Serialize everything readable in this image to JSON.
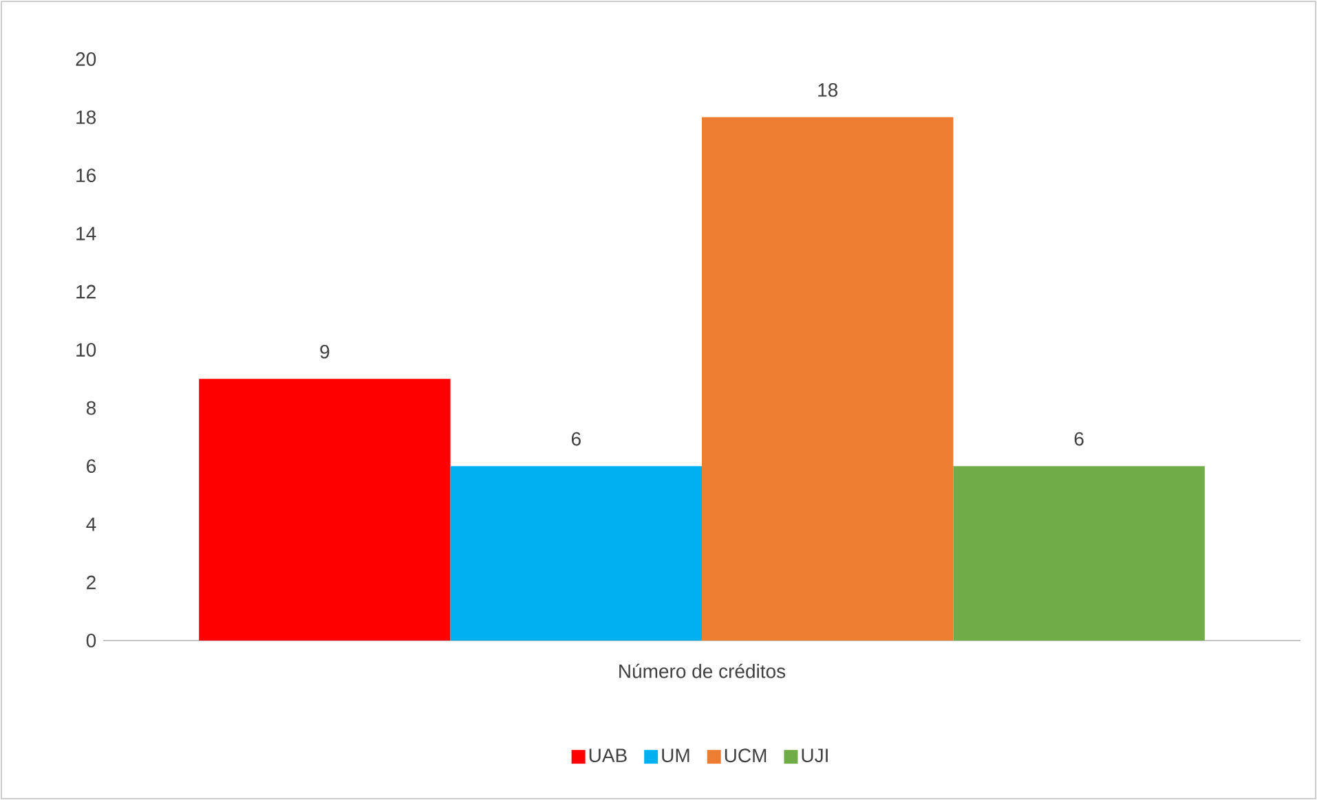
{
  "chart_data": {
    "type": "bar",
    "categories": [
      "Número de créditos"
    ],
    "series": [
      {
        "name": "UAB",
        "color": "#ff0000",
        "values": [
          9
        ]
      },
      {
        "name": "UM",
        "color": "#00b0f0",
        "values": [
          6
        ]
      },
      {
        "name": "UCM",
        "color": "#ed7d31",
        "values": [
          18
        ]
      },
      {
        "name": "UJI",
        "color": "#70ad47",
        "values": [
          6
        ]
      }
    ],
    "ylim": [
      0,
      20
    ],
    "yticks": [
      0,
      2,
      4,
      6,
      8,
      10,
      12,
      14,
      16,
      18,
      20
    ],
    "data_labels": true,
    "legend": "bottom"
  }
}
